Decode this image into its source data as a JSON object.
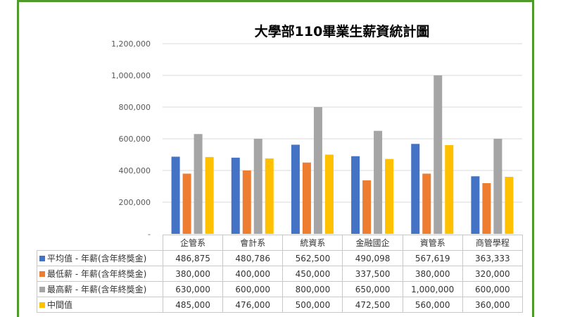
{
  "chart_data": {
    "type": "bar",
    "title": "大學部110畢業生薪資統計圖",
    "categories": [
      "企管系",
      "會計系",
      "統資系",
      "金融國企",
      "資管系",
      "商管學程"
    ],
    "ylim": [
      0,
      1200000
    ],
    "yticks": [
      0,
      200000,
      400000,
      600000,
      800000,
      1000000,
      1200000
    ],
    "ytick_labels": [
      "-",
      "200,000",
      "400,000",
      "600,000",
      "800,000",
      "1,000,000",
      "1,200,000"
    ],
    "grid": true,
    "legend": "data-table",
    "series": [
      {
        "name": "平均值 - 年薪(含年終獎金)",
        "color": "#4472c4",
        "values": [
          486875,
          480786,
          562500,
          490098,
          567619,
          363333
        ],
        "labels": [
          "486,875",
          "480,786",
          "562,500",
          "490,098",
          "567,619",
          "363,333"
        ]
      },
      {
        "name": "最低薪 - 年薪(含年終獎金)",
        "color": "#ed7d31",
        "values": [
          380000,
          400000,
          450000,
          337500,
          380000,
          320000
        ],
        "labels": [
          "380,000",
          "400,000",
          "450,000",
          "337,500",
          "380,000",
          "320,000"
        ]
      },
      {
        "name": "最高薪 - 年薪(含年終獎金)",
        "color": "#a5a5a5",
        "values": [
          630000,
          600000,
          800000,
          650000,
          1000000,
          600000
        ],
        "labels": [
          "630,000",
          "600,000",
          "800,000",
          "650,000",
          "1,000,000",
          "600,000"
        ]
      },
      {
        "name": "中間值",
        "color": "#ffc000",
        "values": [
          485000,
          476000,
          500000,
          472500,
          560000,
          360000
        ],
        "labels": [
          "485,000",
          "476,000",
          "500,000",
          "472,500",
          "560,000",
          "360,000"
        ]
      }
    ]
  }
}
